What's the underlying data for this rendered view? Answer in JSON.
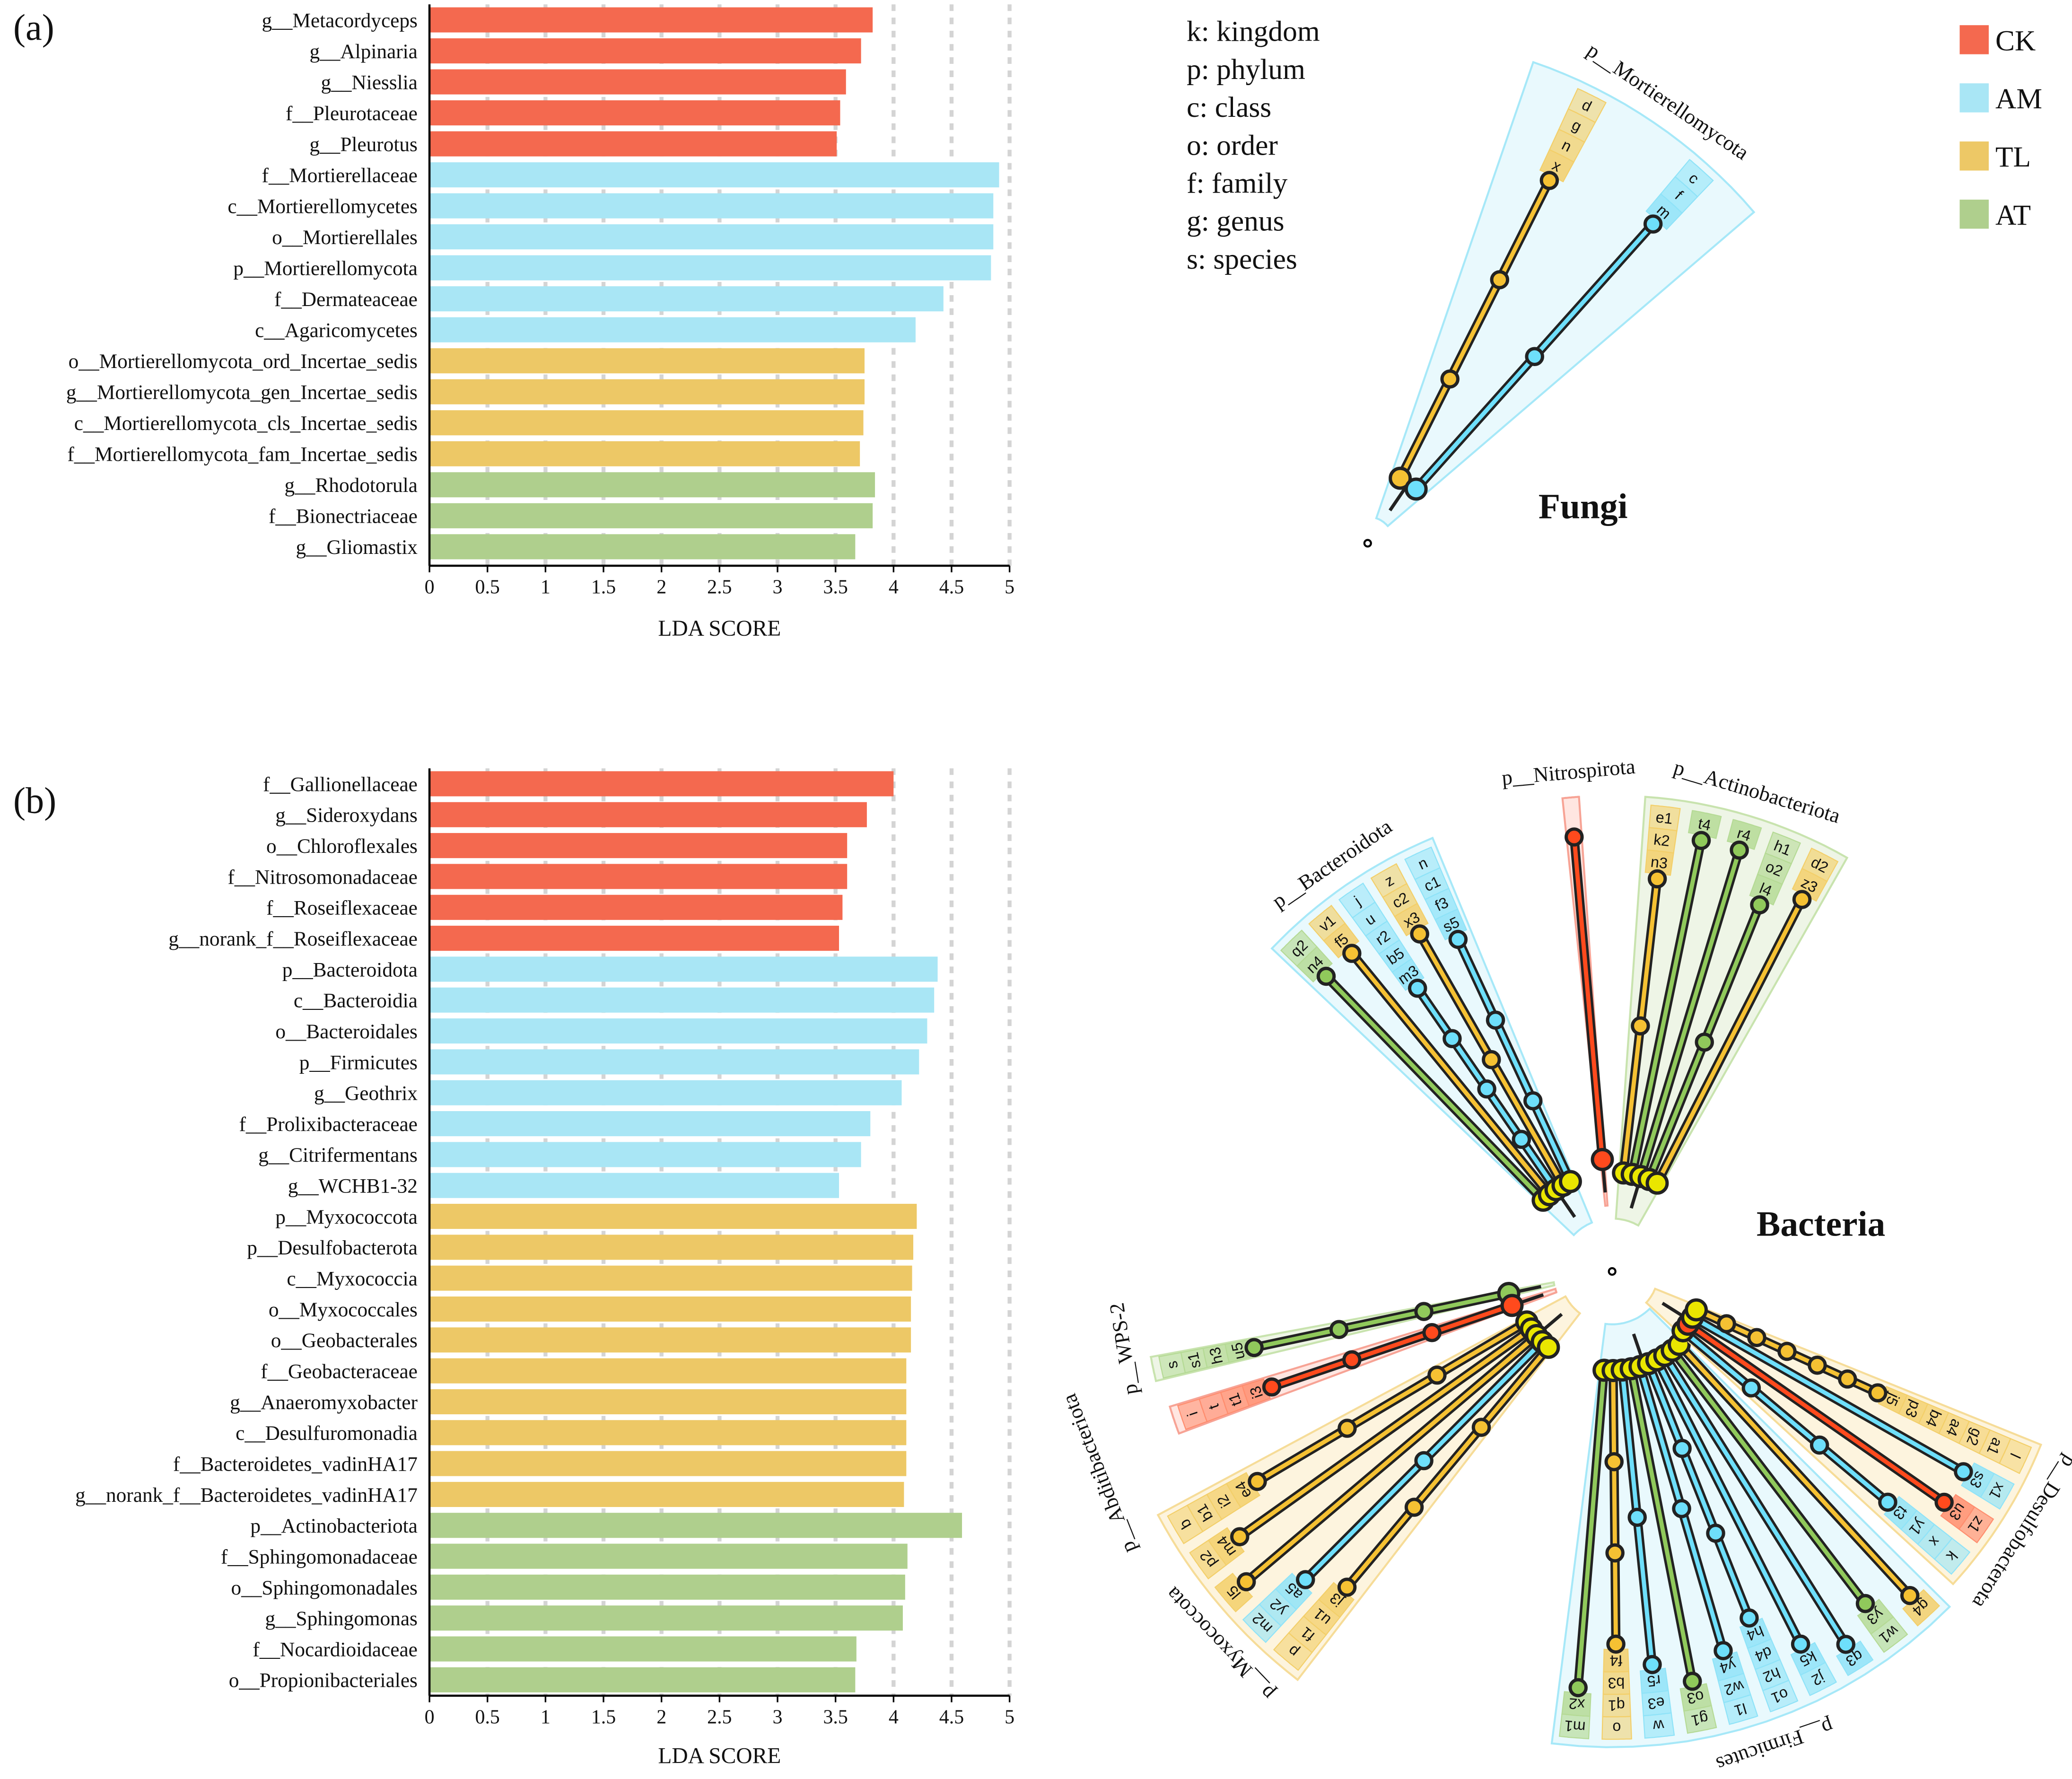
{
  "panels": {
    "a": "(a)",
    "b": "(b)"
  },
  "legend": {
    "items": [
      {
        "label": "CK",
        "color": "#F4694F"
      },
      {
        "label": "AM",
        "color": "#A9E6F5"
      },
      {
        "label": "TL",
        "color": "#EDC866"
      },
      {
        "label": "AT",
        "color": "#AFCF8D"
      }
    ]
  },
  "rank_key": [
    "k: kingdom",
    "p: phylum",
    "c: class",
    "o: order",
    "f: family",
    "g: genus",
    "s: species"
  ],
  "chart_data": [
    {
      "type": "bar",
      "orientation": "horizontal",
      "panel": "(a)",
      "xlabel": "LDA SCORE",
      "xlim": [
        0,
        5
      ],
      "xticks": [
        "0",
        "0.5",
        "1",
        "1.5",
        "2",
        "2.5",
        "3",
        "3.5",
        "4",
        "4.5",
        "5"
      ],
      "grid": "vertical dashed",
      "categories": [
        "g__Metacordyceps",
        "g__Alpinaria",
        "g__Niesslia",
        "f__Pleurotaceae",
        "g__Pleurotus",
        "f__Mortierellaceae",
        "c__Mortierellomycetes",
        "o__Mortierellales",
        "p__Mortierellomycota",
        "f__Dermateaceae",
        "c__Agaricomycetes",
        "o__Mortierellomycota_ord_Incertae_sedis",
        "g__Mortierellomycota_gen_Incertae_sedis",
        "c__Mortierellomycota_cls_Incertae_sedis",
        "f__Mortierellomycota_fam_Incertae_sedis",
        "g__Rhodotorula",
        "f__Bionectriaceae",
        "g__Gliomastix"
      ],
      "values": [
        3.82,
        3.72,
        3.59,
        3.54,
        3.51,
        4.91,
        4.86,
        4.86,
        4.84,
        4.43,
        4.19,
        3.75,
        3.75,
        3.74,
        3.71,
        3.84,
        3.82,
        3.67
      ],
      "groups": [
        "CK",
        "CK",
        "CK",
        "CK",
        "CK",
        "AM",
        "AM",
        "AM",
        "AM",
        "AM",
        "AM",
        "TL",
        "TL",
        "TL",
        "TL",
        "AT",
        "AT",
        "AT"
      ]
    },
    {
      "type": "bar",
      "orientation": "horizontal",
      "panel": "(b)",
      "xlabel": "LDA SCORE",
      "xlim": [
        0,
        5
      ],
      "xticks": [
        "0",
        "0.5",
        "1",
        "1.5",
        "2",
        "2.5",
        "3",
        "3.5",
        "4",
        "4.5",
        "5"
      ],
      "grid": "vertical dashed",
      "categories": [
        "f__Gallionellaceae",
        "g__Sideroxydans",
        "o__Chloroflexales",
        "f__Nitrosomonadaceae",
        "f__Roseiflexaceae",
        "g__norank_f__Roseiflexaceae",
        "p__Bacteroidota",
        "c__Bacteroidia",
        "o__Bacteroidales",
        "p__Firmicutes",
        "g__Geothrix",
        "f__Prolixibacteraceae",
        "g__Citrifermentans",
        "g__WCHB1-32",
        "p__Myxococcota",
        "p__Desulfobacterota",
        "c__Myxococcia",
        "o__Myxococcales",
        "o__Geobacterales",
        "f__Geobacteraceae",
        "g__Anaeromyxobacter",
        "c__Desulfuromonadia",
        "f__Bacteroidetes_vadinHA17",
        "g__norank_f__Bacteroidetes_vadinHA17",
        "p__Actinobacteriota",
        "f__Sphingomonadaceae",
        "o__Sphingomonadales",
        "g__Sphingomonas",
        "f__Nocardioidaceae",
        "o__Propionibacteriales"
      ],
      "values": [
        4.0,
        3.77,
        3.6,
        3.6,
        3.56,
        3.53,
        4.38,
        4.35,
        4.29,
        4.22,
        4.07,
        3.8,
        3.72,
        3.53,
        4.2,
        4.17,
        4.16,
        4.15,
        4.15,
        4.11,
        4.11,
        4.11,
        4.11,
        4.09,
        4.59,
        4.12,
        4.1,
        4.08,
        3.68,
        3.67
      ],
      "groups": [
        "CK",
        "CK",
        "CK",
        "CK",
        "CK",
        "CK",
        "AM",
        "AM",
        "AM",
        "AM",
        "AM",
        "AM",
        "AM",
        "AM",
        "TL",
        "TL",
        "TL",
        "TL",
        "TL",
        "TL",
        "TL",
        "TL",
        "TL",
        "TL",
        "AT",
        "AT",
        "AT",
        "AT",
        "AT",
        "AT"
      ]
    }
  ],
  "cladograms": [
    {
      "title": "Fungi",
      "clades": [
        {
          "name": "p__Mortierellomycota",
          "group": "AM",
          "branches": [
            {
              "group": "TL",
              "labels": [
                "x",
                "n",
                "g",
                "d"
              ]
            },
            {
              "group": "AM",
              "labels": [
                "m",
                "f",
                "c"
              ]
            }
          ]
        }
      ]
    },
    {
      "title": "Bacteria",
      "clades": [
        {
          "name": "p__Bacteroidota",
          "group": "AM",
          "branches": [
            {
              "group": "AT",
              "labels": [
                "n4",
                "q2"
              ]
            },
            {
              "group": "TL",
              "labels": [
                "f5",
                "v1"
              ]
            },
            {
              "group": "AM",
              "labels": [
                "m3",
                "b5",
                "r2",
                "u",
                "j"
              ]
            },
            {
              "group": "TL",
              "labels": [
                "x3",
                "c2",
                "z"
              ]
            },
            {
              "group": "AM",
              "labels": [
                "s5",
                "f3",
                "c1",
                "n"
              ]
            }
          ]
        },
        {
          "name": "p__Nitrospirota",
          "group": "CK",
          "branches": [
            {
              "group": "CK",
              "labels": []
            }
          ]
        },
        {
          "name": "p__Actinobacteriota",
          "group": "AT",
          "branches": [
            {
              "group": "TL",
              "labels": [
                "n3",
                "k2",
                "e1"
              ]
            },
            {
              "group": "AT",
              "labels": [
                "t4"
              ]
            },
            {
              "group": "AT",
              "labels": [
                "r4"
              ]
            },
            {
              "group": "AT",
              "labels": [
                "l4",
                "o2",
                "h1"
              ]
            },
            {
              "group": "TL",
              "labels": [
                "z3",
                "d2"
              ]
            }
          ]
        },
        {
          "name": "p__WPS-2",
          "group": "AT",
          "branches": [
            {
              "group": "AT",
              "labels": [
                "u5",
                "h3",
                "s1",
                "s"
              ]
            }
          ]
        },
        {
          "name": "p__Abditibacteriota",
          "group": "CK",
          "branches": [
            {
              "group": "CK",
              "labels": [
                "i3",
                "t1",
                "t",
                "i"
              ]
            }
          ]
        },
        {
          "name": "p__Myxococcota",
          "group": "TL",
          "branches": [
            {
              "group": "TL",
              "labels": [
                "e4",
                "i2",
                "b1",
                "b"
              ]
            },
            {
              "group": "TL",
              "labels": [
                "m4",
                "p2"
              ]
            },
            {
              "group": "TL",
              "labels": [
                "l5"
              ]
            },
            {
              "group": "AM",
              "labels": [
                "a5",
                "y2",
                "m2"
              ]
            },
            {
              "group": "TL",
              "labels": [
                "j3",
                "u1",
                "f1",
                "p"
              ]
            }
          ]
        },
        {
          "name": "p__Firmicutes",
          "group": "AM",
          "branches": [
            {
              "group": "AT",
              "labels": [
                "x2",
                "m1"
              ]
            },
            {
              "group": "TL",
              "labels": [
                "f4",
                "b3",
                "q1",
                "o"
              ]
            },
            {
              "group": "AM",
              "labels": [
                "r5",
                "e3",
                "w"
              ]
            },
            {
              "group": "AT",
              "labels": [
                "o3",
                "g1"
              ]
            },
            {
              "group": "AM",
              "labels": [
                "y4",
                "w2",
                "l1"
              ]
            },
            {
              "group": "AM",
              "labels": [
                "h4",
                "d4",
                "h2",
                "o1"
              ]
            },
            {
              "group": "AM",
              "labels": [
                "k5",
                "j2"
              ]
            },
            {
              "group": "AM",
              "labels": [
                "q3"
              ]
            },
            {
              "group": "AT",
              "labels": [
                "y3",
                "w1"
              ]
            },
            {
              "group": "TL",
              "labels": [
                "g4"
              ]
            }
          ]
        },
        {
          "name": "p__Desulfobacterota",
          "group": "TL",
          "branches": [
            {
              "group": "AM",
              "labels": [
                "t3",
                "y1",
                "x",
                "k"
              ]
            },
            {
              "group": "CK",
              "labels": [
                "u3",
                "z1"
              ]
            },
            {
              "group": "AM",
              "labels": [
                "s3",
                "x1"
              ]
            },
            {
              "group": "TL",
              "labels": [
                "j5",
                "p3",
                "b4",
                "a4",
                "g2",
                "a1",
                "l"
              ]
            }
          ]
        }
      ]
    }
  ]
}
